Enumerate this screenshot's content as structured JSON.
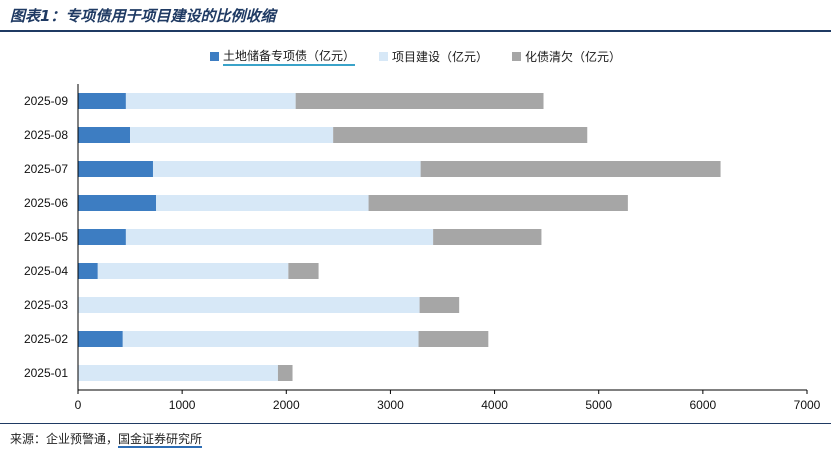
{
  "header": {
    "title": "图表1：专项债用于项目建设的比例收缩"
  },
  "footer": {
    "source_prefix": "来源：企业预警通，",
    "source_highlight": "国金证券研究所"
  },
  "chart_data": {
    "type": "bar",
    "orientation": "horizontal",
    "stacked": true,
    "categories": [
      "2025-09",
      "2025-08",
      "2025-07",
      "2025-06",
      "2025-05",
      "2025-04",
      "2025-03",
      "2025-02",
      "2025-01"
    ],
    "series": [
      {
        "name": "土地储备专项债（亿元）",
        "color": "#3d7dc2",
        "values": [
          460,
          500,
          720,
          750,
          460,
          190,
          0,
          430,
          0
        ]
      },
      {
        "name": "项目建设（亿元）",
        "color": "#d7e8f7",
        "values": [
          1630,
          1950,
          2570,
          2040,
          2950,
          1830,
          3280,
          2840,
          1920
        ]
      },
      {
        "name": "化债清欠（亿元）",
        "color": "#a6a6a6",
        "values": [
          2380,
          2440,
          2880,
          2490,
          1040,
          290,
          380,
          670,
          140
        ]
      }
    ],
    "xlim": [
      0,
      7000
    ],
    "xticks": [
      0,
      1000,
      2000,
      3000,
      4000,
      5000,
      6000,
      7000
    ],
    "legend_position": "top-center",
    "grid": false
  }
}
